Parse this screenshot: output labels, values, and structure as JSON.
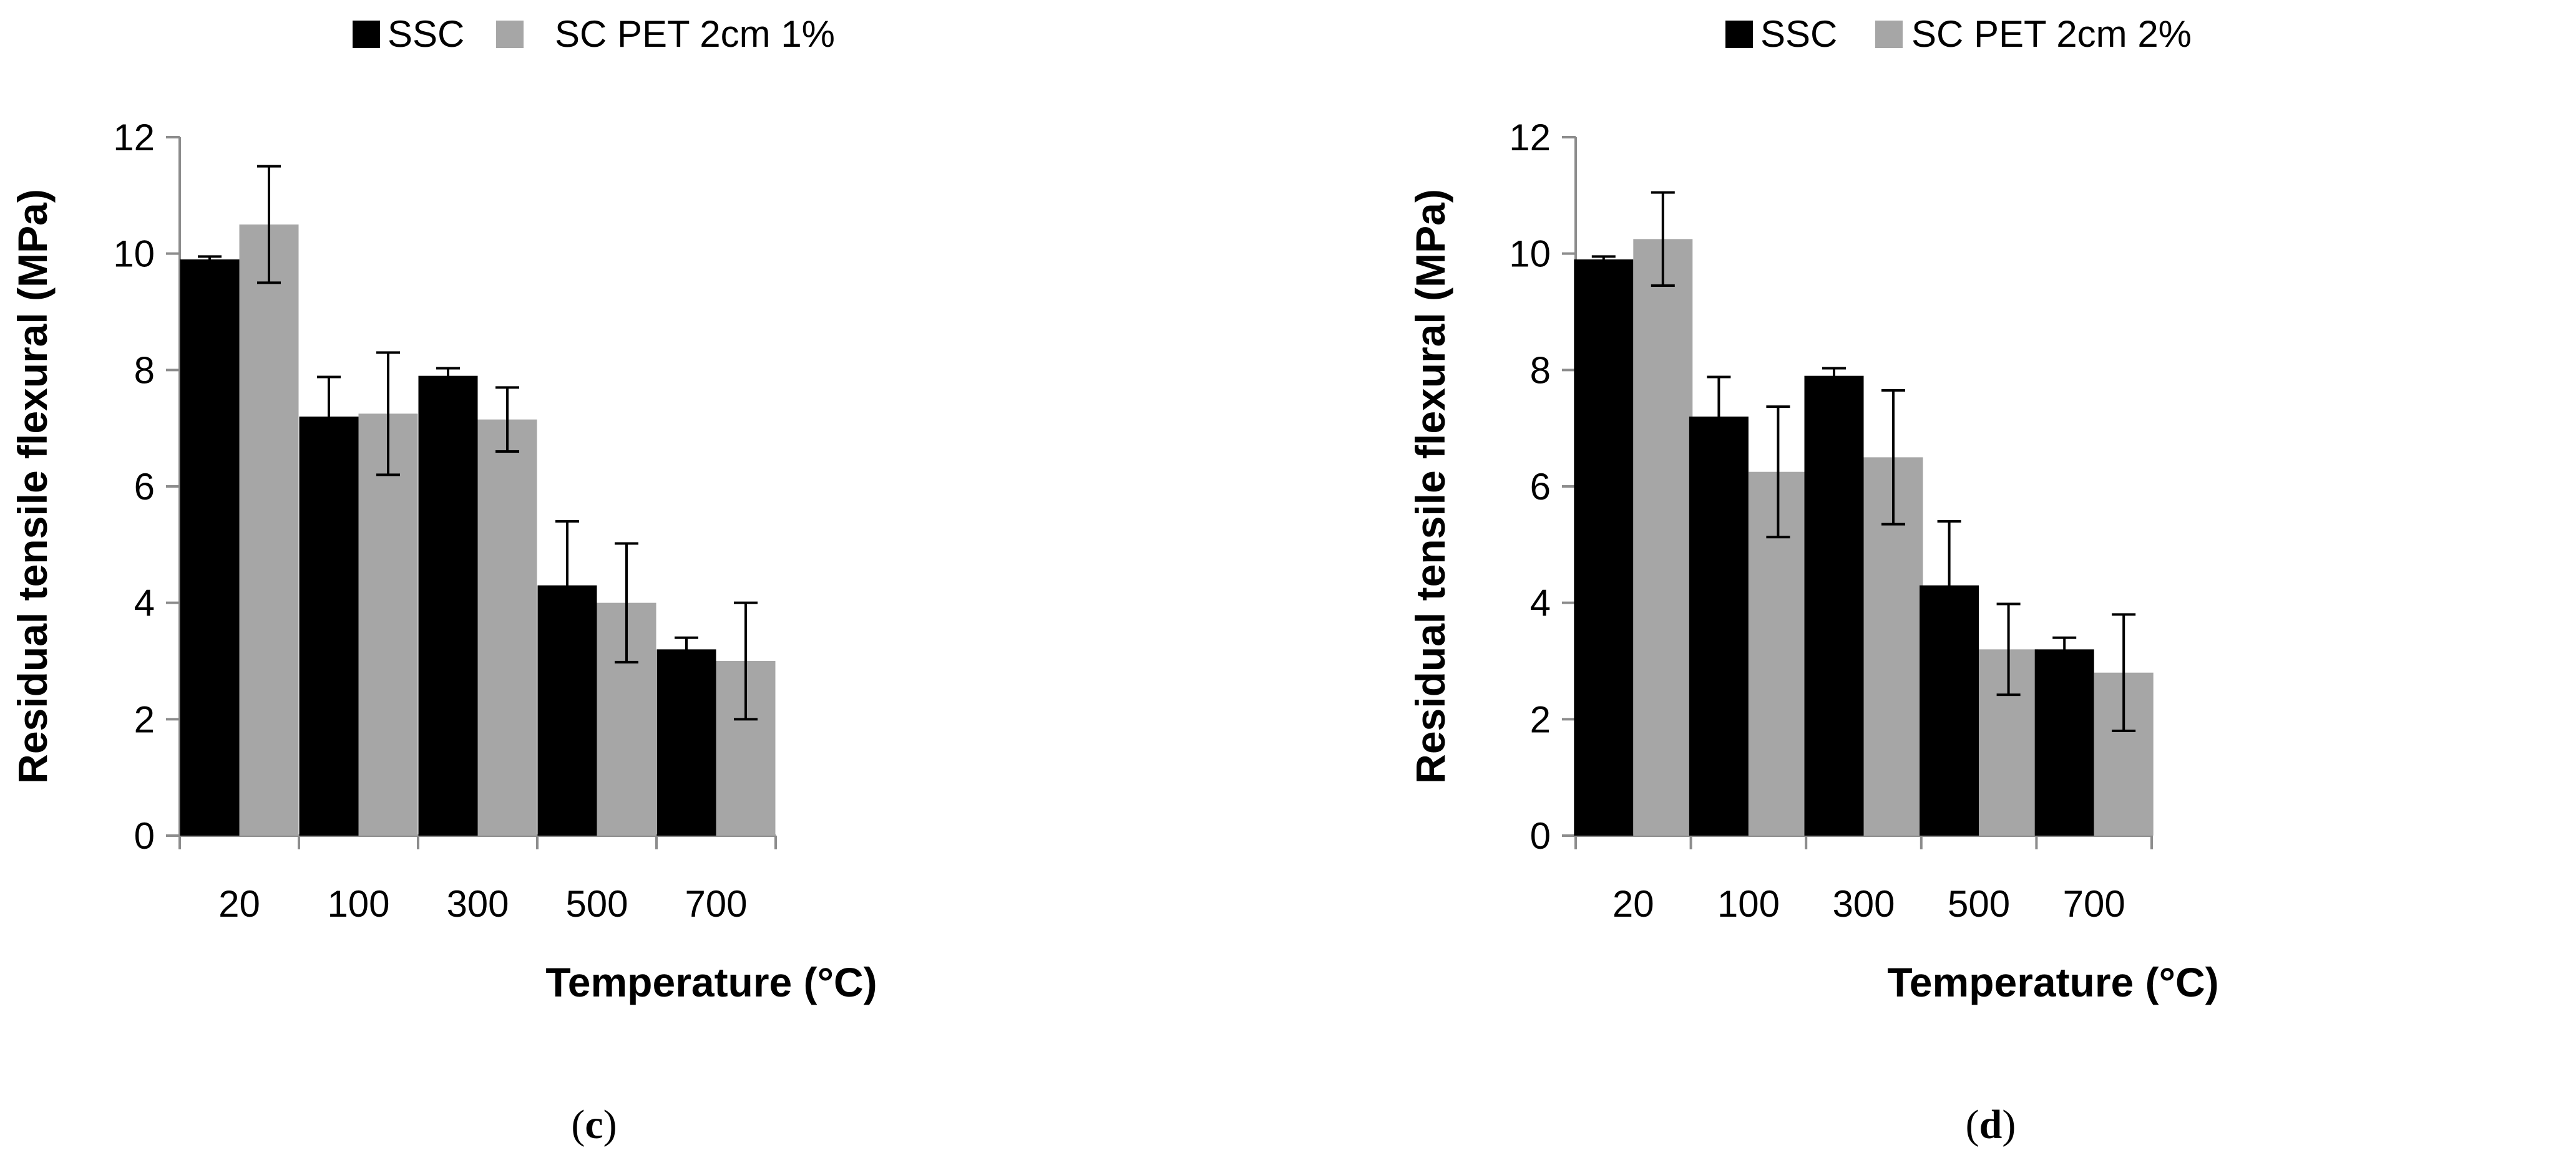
{
  "chart_data": [
    {
      "type": "bar",
      "panel_label": "c",
      "categories": [
        "20",
        "100",
        "300",
        "500",
        "700"
      ],
      "series": [
        {
          "name": "SSC",
          "color": "#000000",
          "values": [
            9.9,
            7.2,
            7.9,
            4.3,
            3.2
          ],
          "errors": [
            0.05,
            0.68,
            0.13,
            1.1,
            0.2
          ]
        },
        {
          "name": "SC PET 2cm 1%",
          "color": "#a6a6a6",
          "values": [
            10.5,
            7.25,
            7.15,
            4.0,
            3.0
          ],
          "errors": [
            1.0,
            1.05,
            0.55,
            1.02,
            1.0
          ]
        }
      ],
      "xlabel": "Temperature (°C)",
      "ylabel": "Residual tensile flexural  (MPa)",
      "ylim": [
        0,
        12
      ],
      "yticks": [
        0,
        2,
        4,
        6,
        8,
        10,
        12
      ],
      "legend": "top"
    },
    {
      "type": "bar",
      "panel_label": "d",
      "categories": [
        "20",
        "100",
        "300",
        "500",
        "700"
      ],
      "series": [
        {
          "name": "SSC",
          "color": "#000000",
          "values": [
            9.9,
            7.2,
            7.9,
            4.3,
            3.2
          ],
          "errors": [
            0.05,
            0.68,
            0.13,
            1.1,
            0.2
          ]
        },
        {
          "name": "SC PET 2cm 2%",
          "color": "#a6a6a6",
          "values": [
            10.25,
            6.25,
            6.5,
            3.2,
            2.8
          ],
          "errors": [
            0.8,
            1.12,
            1.15,
            0.78,
            1.0
          ]
        }
      ],
      "xlabel": "Temperature  (°C)",
      "ylabel": "Residual tensile flexural  (MPa)",
      "ylim": [
        0,
        12
      ],
      "yticks": [
        0,
        2,
        4,
        6,
        8,
        10,
        12
      ],
      "legend": "top"
    }
  ],
  "captions": {
    "c": {
      "open": "(",
      "letter": "c",
      "close": ")"
    },
    "d": {
      "open": "(",
      "letter": "d",
      "close": ")"
    }
  }
}
